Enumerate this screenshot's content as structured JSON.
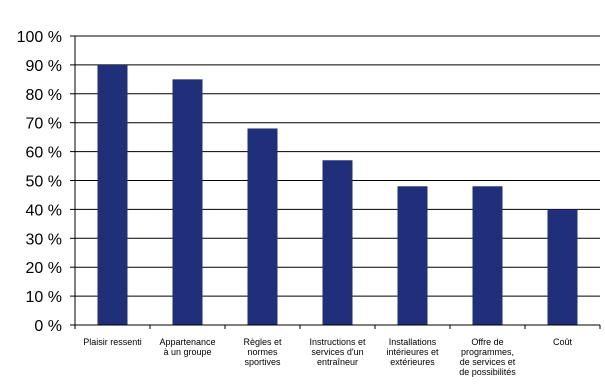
{
  "chart_data": {
    "type": "bar",
    "categories": [
      [
        "Plaisir ressenti"
      ],
      [
        "Appartenance",
        "à un groupe"
      ],
      [
        "Règles et",
        "normes",
        "sportives"
      ],
      [
        "Instructions et",
        "services d'un",
        "entraîneur"
      ],
      [
        "Installations",
        "intérieures et",
        "extérieures"
      ],
      [
        "Offre de",
        "programmes,",
        "de services et",
        "de possibilités"
      ],
      [
        "Coût"
      ]
    ],
    "values": [
      90,
      85,
      68,
      57,
      48,
      48,
      40
    ],
    "ylim": [
      0,
      100
    ],
    "yticks": [
      "0 %",
      "10 %",
      "20 %",
      "30 %",
      "40 %",
      "50 %",
      "60 %",
      "70 %",
      "80 %",
      "90 %",
      "100 %"
    ],
    "grid": true,
    "legend": "none",
    "bar_color": "#1f2f7a",
    "grid_color": "#000000",
    "title": "",
    "xlabel": "",
    "ylabel": ""
  }
}
